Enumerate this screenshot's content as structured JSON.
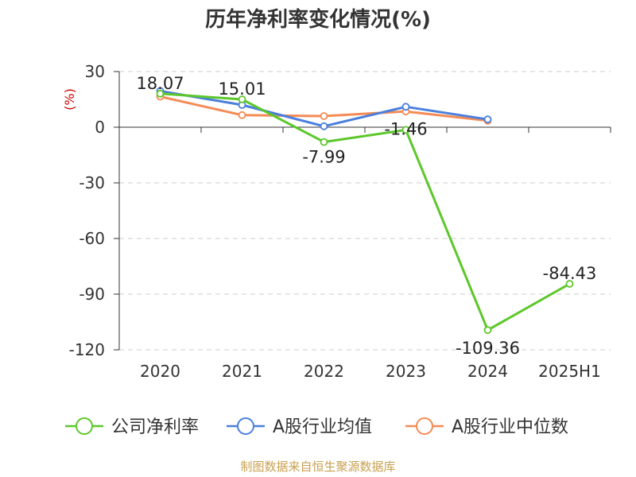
{
  "chart_data": {
    "type": "line",
    "title": "历年净利率变化情况(%)",
    "ylabel": "(%)",
    "categories": [
      "2020",
      "2021",
      "2022",
      "2023",
      "2024",
      "2025H1"
    ],
    "ylim": [
      -120,
      30
    ],
    "yticks": [
      "30",
      "0",
      "-30",
      "-60",
      "-90",
      "-120"
    ],
    "grid": true,
    "legend_position": "bottom",
    "series": [
      {
        "name": "公司净利率",
        "color": "#5cc72a",
        "values": [
          18.07,
          15.01,
          -7.99,
          -1.46,
          -109.36,
          -84.43
        ],
        "labels": [
          "18.07",
          "15.01",
          "-7.99",
          "-1.46",
          "-109.36",
          "-84.43"
        ]
      },
      {
        "name": "A股行业均值",
        "color": "#4a7fdc",
        "values": [
          19.5,
          12.0,
          0.5,
          11.0,
          4.2,
          null
        ]
      },
      {
        "name": "A股行业中位数",
        "color": "#f58b55",
        "values": [
          16.5,
          6.5,
          6.0,
          8.5,
          3.5,
          null
        ]
      }
    ]
  },
  "footer": {
    "source": "制图数据来自恒生聚源数据库"
  }
}
